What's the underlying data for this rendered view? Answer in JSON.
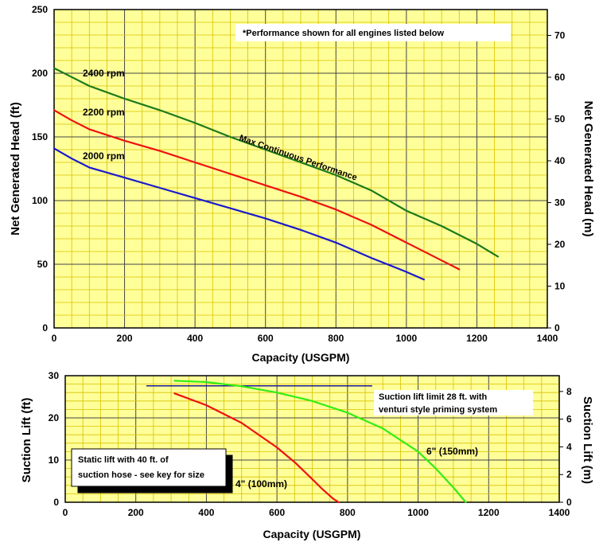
{
  "chart_data": [
    {
      "type": "line",
      "xlabel": "Capacity (USGPM)",
      "ylabel": "Net Generated Head  (ft)",
      "y2label": "Net Generated Head  (m)",
      "xlim": [
        0,
        1400
      ],
      "ylim": [
        0,
        250
      ],
      "y2lim": [
        0,
        76.2
      ],
      "x_ticks": [
        0,
        200,
        400,
        600,
        800,
        1000,
        1200,
        1400
      ],
      "y_ticks": [
        0,
        50,
        100,
        150,
        200,
        250
      ],
      "y2_ticks": [
        0,
        10,
        20,
        30,
        40,
        50,
        60,
        70
      ],
      "grid": true,
      "note": "*Performance shown for all engines listed below",
      "curve_annotation": "Max Continuous Performance",
      "series": [
        {
          "name": "2400 rpm",
          "color": "#1a7a1a",
          "x": [
            0,
            50,
            100,
            200,
            300,
            400,
            500,
            600,
            700,
            800,
            900,
            1000,
            1100,
            1200,
            1260
          ],
          "y": [
            204,
            197,
            190,
            180,
            171,
            161,
            150,
            140,
            130,
            120,
            108,
            92,
            80,
            66,
            56
          ]
        },
        {
          "name": "2200 rpm",
          "color": "#ee1111",
          "x": [
            0,
            50,
            100,
            200,
            300,
            400,
            500,
            600,
            700,
            800,
            900,
            1000,
            1100,
            1150
          ],
          "y": [
            171,
            163,
            156,
            147,
            139,
            130,
            121,
            112,
            103,
            93,
            81,
            67,
            53,
            46
          ]
        },
        {
          "name": "2000 rpm",
          "color": "#1a1acc",
          "x": [
            0,
            50,
            100,
            200,
            300,
            400,
            500,
            600,
            700,
            800,
            900,
            1000,
            1050
          ],
          "y": [
            141,
            133,
            126,
            118,
            110,
            102,
            94,
            86,
            77,
            67,
            55,
            44,
            38
          ]
        }
      ]
    },
    {
      "type": "line",
      "xlabel": "Capacity (USGPM)",
      "ylabel": "Suction Lift  (ft)",
      "y2label": "Suction Lift (m)",
      "xlim": [
        0,
        1400
      ],
      "ylim": [
        0,
        30
      ],
      "y2lim": [
        0,
        9.14
      ],
      "x_ticks": [
        0,
        200,
        400,
        600,
        800,
        1000,
        1200,
        1400
      ],
      "y_ticks": [
        0,
        10,
        20,
        30
      ],
      "y2_ticks": [
        0,
        2,
        4,
        6,
        8
      ],
      "grid": true,
      "limit_line": {
        "x": [
          230,
          870
        ],
        "y": 27.6,
        "color": "#1a1a99"
      },
      "limit_note": [
        "Suction lift limit 28 ft. with",
        "venturi style priming system"
      ],
      "key_note": [
        "Static lift with 40 ft. of",
        "suction hose - see key for size"
      ],
      "series": [
        {
          "name": "6\" (150mm)",
          "color": "#33ee11",
          "x": [
            310,
            400,
            500,
            600,
            700,
            800,
            900,
            1000,
            1050,
            1100,
            1135
          ],
          "y": [
            28.8,
            28.5,
            27.5,
            26,
            24,
            21.2,
            17.5,
            12,
            8,
            3.5,
            0
          ]
        },
        {
          "name": "4\" (100mm)",
          "color": "#ee1111",
          "x": [
            310,
            400,
            500,
            600,
            650,
            700,
            730,
            760,
            775
          ],
          "y": [
            25.8,
            23,
            18.8,
            13,
            9.5,
            5.5,
            3,
            0.8,
            0
          ]
        }
      ]
    }
  ]
}
